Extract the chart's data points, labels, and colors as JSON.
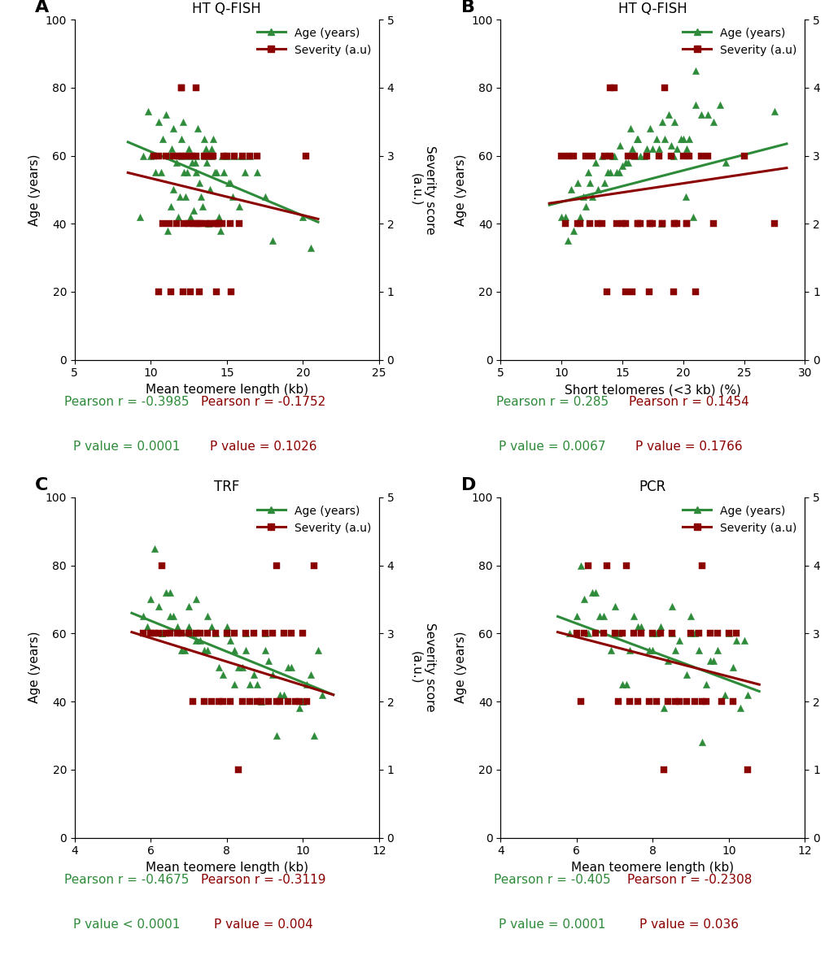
{
  "panels": [
    {
      "label": "A",
      "title": "HT Q-FISH",
      "xlabel": "Mean teomere length (kb)",
      "xlim": [
        5,
        25
      ],
      "xticks": [
        5,
        10,
        15,
        20,
        25
      ],
      "ylim_left": [
        0,
        100
      ],
      "ylim_right": [
        0,
        5
      ],
      "yticks_left": [
        0,
        20,
        40,
        60,
        80,
        100
      ],
      "yticks_right": [
        0,
        1,
        2,
        3,
        4,
        5
      ],
      "pearson_green": "Pearson r = -0.3985",
      "pvalue_green": "P value = 0.0001",
      "pearson_red": "Pearson r = -0.1752",
      "pvalue_red": "P value = 0.1026",
      "age_x": [
        9.5,
        9.8,
        10.0,
        10.3,
        10.5,
        10.7,
        10.8,
        11.0,
        11.1,
        11.2,
        11.3,
        11.4,
        11.5,
        11.5,
        11.7,
        11.8,
        11.9,
        12.0,
        12.0,
        12.1,
        12.2,
        12.3,
        12.4,
        12.5,
        12.5,
        12.6,
        12.7,
        12.8,
        12.9,
        13.0,
        13.0,
        13.1,
        13.2,
        13.3,
        13.4,
        13.5,
        13.5,
        13.6,
        13.7,
        13.8,
        13.9,
        14.0,
        14.0,
        14.1,
        14.2,
        14.3,
        14.5,
        14.6,
        14.7,
        14.8,
        14.9,
        15.0,
        15.1,
        15.2,
        15.4,
        15.5,
        15.8,
        15.9,
        16.0,
        16.2,
        16.5,
        17.0,
        17.5,
        18.0,
        20.0,
        20.5,
        9.3
      ],
      "age_y": [
        60,
        73,
        60,
        55,
        70,
        55,
        65,
        72,
        38,
        60,
        45,
        62,
        68,
        50,
        58,
        42,
        48,
        60,
        65,
        70,
        55,
        48,
        55,
        60,
        62,
        42,
        58,
        44,
        58,
        60,
        55,
        68,
        52,
        48,
        45,
        60,
        65,
        62,
        58,
        40,
        50,
        60,
        62,
        65,
        55,
        55,
        42,
        38,
        60,
        55,
        60,
        60,
        52,
        52,
        48,
        60,
        45,
        60,
        60,
        55,
        60,
        55,
        48,
        35,
        42,
        33,
        42
      ],
      "sev_x": [
        10.2,
        10.5,
        10.8,
        11.0,
        11.2,
        11.5,
        11.7,
        11.8,
        12.0,
        12.0,
        12.0,
        12.2,
        12.3,
        12.5,
        12.7,
        12.8,
        13.0,
        13.0,
        13.0,
        13.2,
        13.3,
        13.5,
        13.6,
        13.7,
        13.8,
        13.9,
        14.0,
        14.1,
        14.2,
        14.3,
        14.4,
        14.5,
        14.7,
        14.8,
        15.0,
        15.2,
        15.3,
        15.5,
        15.8,
        16.0,
        16.5,
        17.0,
        10.5,
        11.3,
        12.1,
        12.6,
        13.2,
        14.3,
        20.2
      ],
      "sev_y": [
        3,
        3,
        2,
        3,
        2,
        3,
        2,
        3,
        3,
        4,
        4,
        2,
        3,
        2,
        3,
        2,
        3,
        4,
        2,
        2,
        2,
        3,
        3,
        2,
        3,
        2,
        3,
        3,
        2,
        2,
        2,
        2,
        2,
        3,
        3,
        2,
        1,
        3,
        2,
        3,
        3,
        3,
        1,
        1,
        1,
        1,
        1,
        1,
        3
      ],
      "age_line_x": [
        8.5,
        21.0
      ],
      "age_line_y": [
        64.0,
        40.5
      ],
      "sev_line_x": [
        8.5,
        21.0
      ],
      "sev_line_y": [
        2.75,
        2.07
      ]
    },
    {
      "label": "B",
      "title": "HT Q-FISH",
      "xlabel": "Short telomeres (<3 kb) (%)",
      "xlim": [
        5,
        30
      ],
      "xticks": [
        5,
        10,
        15,
        20,
        25,
        30
      ],
      "ylim_left": [
        0,
        100
      ],
      "ylim_right": [
        0,
        5
      ],
      "yticks_left": [
        0,
        20,
        40,
        60,
        80,
        100
      ],
      "yticks_right": [
        0,
        1,
        2,
        3,
        4,
        5
      ],
      "pearson_green": "Pearson r = 0.285",
      "pvalue_green": "P value = 0.0067",
      "pearson_red": "Pearson r = 0.1454",
      "pvalue_red": "P value = 0.1766",
      "age_x": [
        10.0,
        10.3,
        10.5,
        10.8,
        11.0,
        11.3,
        11.5,
        11.8,
        12.0,
        12.2,
        12.3,
        12.5,
        12.8,
        13.0,
        13.3,
        13.5,
        13.8,
        14.0,
        14.2,
        14.3,
        14.5,
        14.7,
        14.8,
        15.0,
        15.3,
        15.5,
        15.7,
        15.8,
        16.0,
        16.2,
        16.3,
        16.5,
        16.8,
        17.0,
        17.3,
        17.5,
        17.8,
        18.0,
        18.2,
        18.3,
        18.5,
        18.8,
        19.0,
        19.2,
        19.3,
        19.5,
        19.8,
        20.0,
        20.2,
        20.3,
        20.5,
        20.8,
        21.0,
        21.0,
        21.5,
        22.0,
        22.5,
        23.0,
        23.5,
        27.5
      ],
      "age_y": [
        42,
        42,
        35,
        50,
        38,
        52,
        42,
        48,
        45,
        55,
        52,
        48,
        58,
        50,
        60,
        52,
        55,
        55,
        60,
        60,
        55,
        55,
        63,
        57,
        58,
        58,
        68,
        62,
        60,
        65,
        65,
        60,
        60,
        62,
        68,
        62,
        65,
        62,
        40,
        70,
        65,
        72,
        63,
        60,
        70,
        62,
        65,
        65,
        48,
        62,
        65,
        42,
        75,
        85,
        72,
        72,
        70,
        75,
        58,
        73
      ],
      "sev_x": [
        10.0,
        10.5,
        11.0,
        11.5,
        12.0,
        12.5,
        13.0,
        13.5,
        13.7,
        14.0,
        14.0,
        14.5,
        15.0,
        15.3,
        15.5,
        15.8,
        16.0,
        16.3,
        16.5,
        17.0,
        17.2,
        17.3,
        17.5,
        18.0,
        18.3,
        18.5,
        19.0,
        19.2,
        19.3,
        19.5,
        20.0,
        20.3,
        20.5,
        21.0,
        21.5,
        22.0,
        22.5,
        25.0,
        27.5,
        10.3,
        11.3,
        12.3,
        13.3,
        14.3,
        15.3,
        16.3,
        17.3,
        18.3,
        19.3,
        20.3
      ],
      "sev_y": [
        3,
        3,
        3,
        2,
        3,
        3,
        2,
        3,
        1,
        3,
        4,
        2,
        2,
        1,
        3,
        1,
        3,
        2,
        2,
        3,
        1,
        2,
        2,
        3,
        2,
        4,
        3,
        1,
        2,
        2,
        3,
        2,
        3,
        1,
        3,
        3,
        2,
        3,
        2,
        2,
        2,
        2,
        2,
        4,
        2,
        2,
        2,
        2,
        2,
        2
      ],
      "age_line_x": [
        9.0,
        28.5
      ],
      "age_line_y": [
        45.5,
        63.5
      ],
      "sev_line_x": [
        9.0,
        28.5
      ],
      "sev_line_y": [
        2.3,
        2.82
      ]
    },
    {
      "label": "C",
      "title": "TRF",
      "xlabel": "Mean teomere length (kb)",
      "xlim": [
        4,
        12
      ],
      "xticks": [
        4,
        6,
        8,
        10,
        12
      ],
      "ylim_left": [
        0,
        100
      ],
      "ylim_right": [
        0,
        5
      ],
      "yticks_left": [
        0,
        20,
        40,
        60,
        80,
        100
      ],
      "yticks_right": [
        0,
        1,
        2,
        3,
        4,
        5
      ],
      "pearson_green": "Pearson r = -0.4675",
      "pvalue_green": "P value < 0.0001",
      "pearson_red": "Pearson r = -0.3119",
      "pvalue_red": "P value = 0.004",
      "age_x": [
        5.8,
        5.9,
        6.0,
        6.1,
        6.2,
        6.3,
        6.3,
        6.4,
        6.5,
        6.5,
        6.6,
        6.7,
        6.8,
        6.9,
        7.0,
        7.0,
        7.1,
        7.2,
        7.2,
        7.3,
        7.4,
        7.5,
        7.5,
        7.6,
        7.7,
        7.8,
        7.9,
        8.0,
        8.0,
        8.1,
        8.2,
        8.2,
        8.3,
        8.4,
        8.5,
        8.5,
        8.6,
        8.7,
        8.8,
        8.9,
        9.0,
        9.0,
        9.1,
        9.2,
        9.3,
        9.4,
        9.5,
        9.6,
        9.7,
        9.9,
        10.0,
        10.1,
        10.2,
        10.3,
        10.4,
        10.5
      ],
      "age_y": [
        65,
        62,
        70,
        85,
        68,
        60,
        60,
        72,
        72,
        65,
        65,
        62,
        55,
        55,
        68,
        62,
        60,
        70,
        58,
        58,
        55,
        65,
        55,
        62,
        60,
        50,
        48,
        60,
        62,
        58,
        55,
        45,
        50,
        50,
        60,
        55,
        45,
        48,
        45,
        40,
        60,
        55,
        52,
        48,
        30,
        42,
        42,
        50,
        50,
        38,
        40,
        45,
        48,
        30,
        55,
        42
      ],
      "sev_x": [
        5.8,
        6.0,
        6.1,
        6.2,
        6.3,
        6.4,
        6.5,
        6.7,
        6.8,
        7.0,
        7.1,
        7.2,
        7.3,
        7.4,
        7.5,
        7.6,
        7.7,
        7.8,
        7.9,
        8.0,
        8.1,
        8.2,
        8.3,
        8.4,
        8.5,
        8.6,
        8.7,
        8.8,
        8.9,
        9.0,
        9.1,
        9.2,
        9.3,
        9.3,
        9.4,
        9.5,
        9.6,
        9.7,
        9.8,
        9.9,
        10.0,
        10.1,
        10.3
      ],
      "sev_y": [
        3,
        3,
        3,
        3,
        4,
        3,
        3,
        3,
        3,
        3,
        2,
        3,
        3,
        2,
        3,
        2,
        3,
        2,
        2,
        3,
        2,
        3,
        1,
        2,
        3,
        2,
        3,
        2,
        2,
        3,
        2,
        3,
        4,
        2,
        2,
        3,
        2,
        3,
        2,
        2,
        3,
        2,
        4
      ],
      "age_line_x": [
        5.5,
        10.8
      ],
      "age_line_y": [
        66.0,
        42.0
      ],
      "sev_line_x": [
        5.5,
        10.8
      ],
      "sev_line_y": [
        3.02,
        2.1
      ]
    },
    {
      "label": "D",
      "title": "PCR",
      "xlabel": "Mean teomere length (kb)",
      "xlim": [
        4,
        12
      ],
      "xticks": [
        4,
        6,
        8,
        10,
        12
      ],
      "ylim_left": [
        0,
        100
      ],
      "ylim_right": [
        0,
        5
      ],
      "yticks_left": [
        0,
        20,
        40,
        60,
        80,
        100
      ],
      "yticks_right": [
        0,
        1,
        2,
        3,
        4,
        5
      ],
      "pearson_green": "Pearson r = -0.405",
      "pvalue_green": "P value = 0.0001",
      "pearson_red": "Pearson r = -0.2308",
      "pvalue_red": "P value = 0.036",
      "age_x": [
        5.8,
        6.0,
        6.1,
        6.2,
        6.3,
        6.4,
        6.5,
        6.6,
        6.7,
        6.9,
        7.0,
        7.1,
        7.2,
        7.3,
        7.4,
        7.5,
        7.6,
        7.7,
        7.9,
        8.0,
        8.0,
        8.1,
        8.2,
        8.3,
        8.4,
        8.5,
        8.5,
        8.6,
        8.7,
        8.9,
        9.0,
        9.0,
        9.1,
        9.2,
        9.3,
        9.4,
        9.5,
        9.6,
        9.7,
        9.9,
        10.0,
        10.1,
        10.2,
        10.3,
        10.4,
        10.5
      ],
      "age_y": [
        60,
        65,
        80,
        70,
        60,
        72,
        72,
        65,
        65,
        55,
        68,
        60,
        45,
        45,
        55,
        65,
        62,
        62,
        55,
        60,
        55,
        60,
        62,
        38,
        52,
        60,
        68,
        55,
        58,
        48,
        60,
        65,
        60,
        55,
        28,
        45,
        52,
        52,
        55,
        42,
        60,
        50,
        58,
        38,
        58,
        42
      ],
      "sev_x": [
        6.0,
        6.1,
        6.2,
        6.3,
        6.5,
        6.7,
        6.8,
        7.0,
        7.1,
        7.2,
        7.3,
        7.4,
        7.5,
        7.6,
        7.7,
        7.9,
        8.0,
        8.1,
        8.2,
        8.3,
        8.4,
        8.5,
        8.6,
        8.7,
        8.9,
        9.0,
        9.1,
        9.2,
        9.3,
        9.3,
        9.4,
        9.5,
        9.7,
        9.8,
        10.0,
        10.1,
        10.2,
        10.5
      ],
      "sev_y": [
        3,
        2,
        3,
        4,
        3,
        3,
        4,
        3,
        2,
        3,
        4,
        2,
        3,
        2,
        3,
        2,
        3,
        2,
        3,
        1,
        2,
        3,
        2,
        2,
        2,
        3,
        2,
        3,
        4,
        2,
        2,
        3,
        3,
        2,
        3,
        2,
        3,
        1
      ],
      "age_line_x": [
        5.5,
        10.8
      ],
      "age_line_y": [
        65.0,
        43.0
      ],
      "sev_line_x": [
        5.5,
        10.8
      ],
      "sev_line_y": [
        3.02,
        2.25
      ]
    }
  ],
  "green_color": "#2e8b3a",
  "red_color": "#8b0000",
  "marker_green": "^",
  "marker_red": "s",
  "marker_size_green": 36,
  "marker_size_red": 36,
  "line_width": 2.2,
  "ylabel_left": "Age (years)",
  "ylabel_right": "Severity score\n(a.u.)",
  "panel_label_fontsize": 16,
  "title_fontsize": 12,
  "axis_label_fontsize": 11,
  "tick_fontsize": 10,
  "stats_fontsize": 11,
  "legend_fontsize": 10
}
